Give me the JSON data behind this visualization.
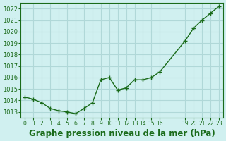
{
  "x": [
    0,
    1,
    2,
    3,
    4,
    5,
    6,
    7,
    8,
    9,
    10,
    11,
    12,
    13,
    14,
    15,
    16,
    19,
    20,
    21,
    22,
    23
  ],
  "y": [
    1014.3,
    1014.1,
    1013.8,
    1013.3,
    1013.1,
    1013.0,
    1012.85,
    1013.3,
    1013.8,
    1015.8,
    1016.0,
    1014.9,
    1015.1,
    1015.8,
    1015.8,
    1016.0,
    1016.5,
    1019.2,
    1020.3,
    1021.0,
    1021.6,
    1022.2
  ],
  "xticks": [
    0,
    1,
    2,
    3,
    4,
    5,
    6,
    7,
    8,
    9,
    10,
    11,
    12,
    13,
    14,
    15,
    16,
    19,
    20,
    21,
    22,
    23
  ],
  "xticklabels": [
    "0",
    "1",
    "2",
    "3",
    "4",
    "5",
    "6",
    "7",
    "8",
    "9",
    "10",
    "11",
    "12",
    "13",
    "14",
    "15",
    "16",
    "19",
    "20",
    "21",
    "22",
    "23"
  ],
  "ylim": [
    1012.5,
    1022.5
  ],
  "yticks": [
    1013,
    1014,
    1015,
    1016,
    1017,
    1018,
    1019,
    1020,
    1021,
    1022
  ],
  "line_color": "#1a6b1a",
  "marker_color": "#1a6b1a",
  "bg_color": "#d0f0f0",
  "grid_color": "#b0d8d8",
  "xlabel": "Graphe pression niveau de la mer (hPa)",
  "xlabel_color": "#1a6b1a",
  "tick_color": "#1a6b1a",
  "xlabel_fontsize": 8.5
}
